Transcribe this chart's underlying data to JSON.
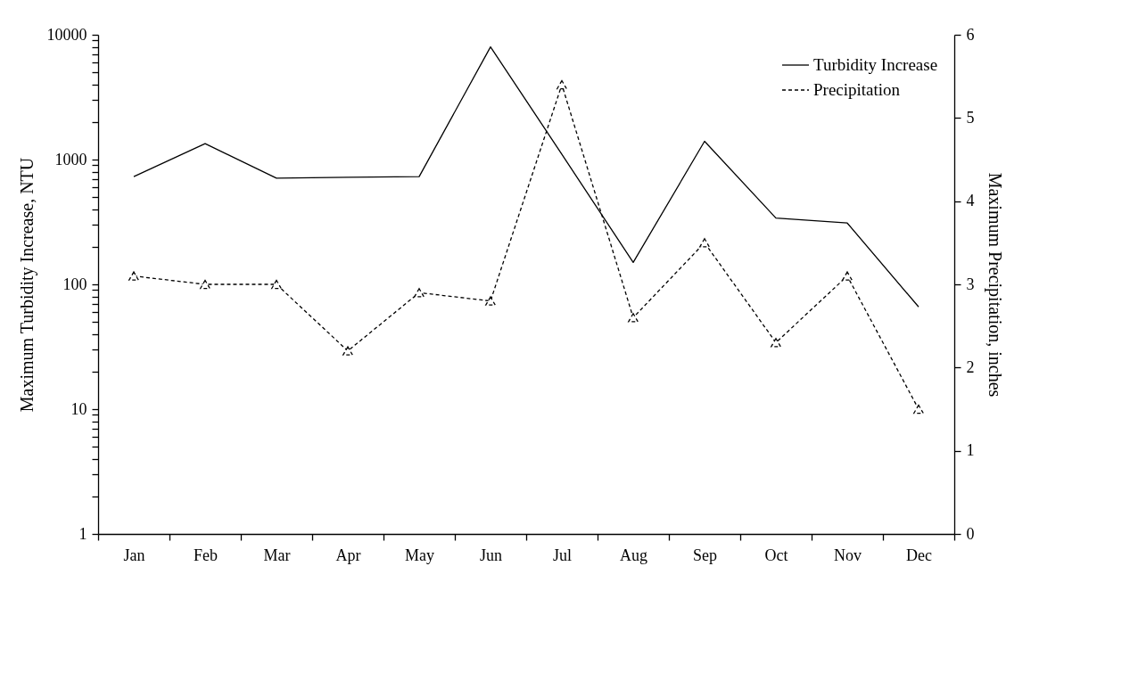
{
  "chart_data": {
    "type": "line",
    "categories": [
      "Jan",
      "Feb",
      "Mar",
      "Apr",
      "May",
      "Jun",
      "Jul",
      "Aug",
      "Sep",
      "Oct",
      "Nov",
      "Dec"
    ],
    "ylabel": "Maximum Turbidity Increase, NTU",
    "y2label": "Maximum Precipitation, inches",
    "log": true,
    "grid": false,
    "legend": "top right",
    "ylim": [
      1,
      10000
    ],
    "yticks": [
      1,
      {
        "value": 2,
        "label": null
      },
      {
        "value": 3,
        "label": null
      },
      {
        "value": 4,
        "label": null
      },
      {
        "value": 5,
        "label": null
      },
      {
        "value": 6,
        "label": null
      },
      {
        "value": 7,
        "label": null
      },
      {
        "value": 8,
        "label": null
      },
      {
        "value": 9,
        "label": null
      },
      10,
      {
        "value": 20,
        "label": null
      },
      {
        "value": 30,
        "label": null
      },
      {
        "value": 40,
        "label": null
      },
      {
        "value": 50,
        "label": null
      },
      {
        "value": 60,
        "label": null
      },
      {
        "value": 70,
        "label": null
      },
      {
        "value": 80,
        "label": null
      },
      {
        "value": 90,
        "label": null
      },
      100,
      {
        "value": 200,
        "label": null
      },
      {
        "value": 300,
        "label": null
      },
      {
        "value": 400,
        "label": null
      },
      {
        "value": 500,
        "label": null
      },
      {
        "value": 600,
        "label": null
      },
      {
        "value": 700,
        "label": null
      },
      {
        "value": 800,
        "label": null
      },
      {
        "value": 900,
        "label": null
      },
      1000,
      {
        "value": 2000,
        "label": null
      },
      {
        "value": 3000,
        "label": null
      },
      {
        "value": 4000,
        "label": null
      },
      {
        "value": 5000,
        "label": null
      },
      {
        "value": 6000,
        "label": null
      },
      {
        "value": 7000,
        "label": null
      },
      {
        "value": 8000,
        "label": null
      },
      {
        "value": 9000,
        "label": null
      },
      10000
    ],
    "y2lim": [
      0,
      6
    ],
    "y2ticks": [
      0,
      1,
      2,
      3,
      4,
      5,
      6
    ],
    "series": [
      {
        "name": "Turbidity Increase",
        "color": "#000000",
        "line_style": "solid",
        "marker": "none",
        "values": [
          730,
          1340,
          710,
          720,
          730,
          8000,
          1100,
          150,
          1400,
          340,
          310,
          66
        ]
      },
      {
        "name": "Precipitation",
        "color": "#000000",
        "line_style": "dashed",
        "marker": "triangle",
        "axis": "y2",
        "values": [
          3.1,
          3.0,
          3.0,
          2.2,
          2.9,
          2.8,
          5.4,
          2.6,
          3.5,
          2.3,
          3.1,
          1.5
        ]
      }
    ]
  }
}
